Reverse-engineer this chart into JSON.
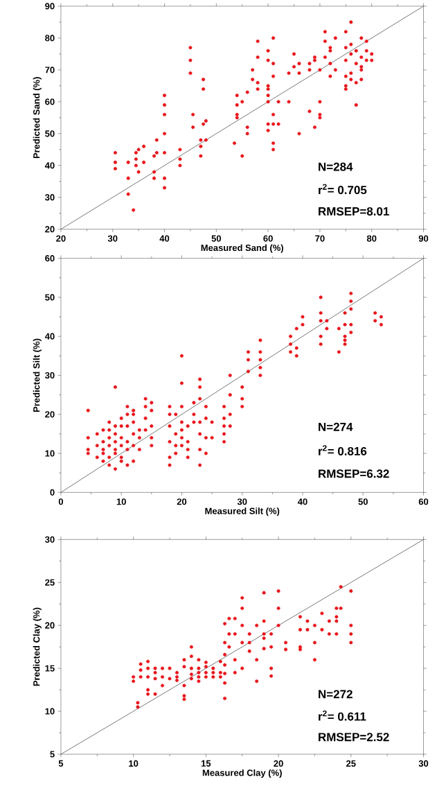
{
  "chart_data": [
    {
      "type": "scatter",
      "xlabel": "Measured Sand (%)",
      "ylabel": "Predicted Sand (%)",
      "xlim": [
        20,
        90
      ],
      "ylim": [
        20,
        90
      ],
      "xticks": [
        20,
        30,
        40,
        50,
        60,
        70,
        80,
        90
      ],
      "yticks": [
        20,
        30,
        40,
        50,
        60,
        70,
        80,
        90
      ],
      "annotations": [
        "N=284",
        "r$^{2}$= 0.705",
        "RMSEP=8.01"
      ],
      "series": [
        {
          "color": "#e8141b",
          "marker": "circle",
          "x": [
            30.5,
            30.5,
            30.5,
            33,
            33,
            33,
            34,
            34.5,
            34.5,
            34.5,
            35,
            35,
            36,
            36,
            38,
            38,
            38,
            38.5,
            38.5,
            40,
            40,
            40,
            40,
            40,
            40,
            40,
            43,
            43,
            43,
            45,
            45,
            45,
            45.5,
            45.5,
            47,
            47,
            47,
            47.5,
            47.5,
            47.5,
            48,
            48,
            53.5,
            54,
            54,
            54,
            54,
            55,
            55,
            56,
            56,
            56,
            57,
            57,
            58,
            58,
            58,
            58,
            60,
            60,
            60,
            60,
            60,
            60,
            60,
            60,
            61,
            61,
            61,
            61,
            61,
            61,
            61,
            62,
            62,
            64,
            64,
            65,
            65,
            66,
            66,
            66,
            68,
            68,
            68,
            69,
            69,
            69,
            70,
            70,
            70,
            70,
            71,
            71,
            71,
            72,
            72,
            72,
            72,
            73,
            73,
            75,
            75,
            75,
            75,
            75,
            75,
            76,
            76,
            76,
            76,
            76,
            77,
            77,
            77,
            77,
            78,
            78,
            78,
            78,
            78,
            79,
            79,
            79,
            80,
            80
          ],
          "values": [
            44,
            41,
            39,
            41,
            36,
            31,
            26,
            44,
            42,
            40,
            38,
            45,
            46,
            41,
            43,
            38,
            36,
            48,
            44,
            62,
            59,
            56,
            50,
            44,
            36,
            33,
            45,
            42,
            40,
            77,
            73,
            69,
            52,
            56,
            43,
            46,
            48,
            67,
            64,
            53,
            48,
            54,
            47,
            62,
            59,
            55,
            56,
            43,
            60,
            63,
            50,
            52,
            70,
            67,
            79,
            74,
            66,
            64,
            76,
            73,
            65,
            64,
            62,
            60,
            53,
            51,
            80,
            72,
            68,
            56,
            53,
            47,
            45,
            60,
            53,
            60,
            69,
            75,
            71,
            72,
            69,
            50,
            70,
            72,
            57,
            74,
            73,
            52,
            70,
            60,
            55,
            56,
            82,
            79,
            74,
            77,
            76,
            72,
            68,
            80,
            70,
            82,
            77,
            73,
            68,
            65,
            64,
            85,
            78,
            75,
            69,
            67,
            76,
            72,
            66,
            59,
            80,
            74,
            70,
            71,
            67,
            79,
            76,
            73,
            75,
            73
          ]
        },
        {
          "type": "line",
          "color": "#555555",
          "x": [
            20,
            90
          ],
          "values": [
            20,
            90
          ]
        }
      ]
    },
    {
      "type": "scatter",
      "xlabel": "Measured Silt (%)",
      "ylabel": "Predicted Silt (%)",
      "xlim": [
        0,
        60
      ],
      "ylim": [
        0,
        60
      ],
      "xticks": [
        0,
        10,
        20,
        30,
        40,
        50,
        60
      ],
      "yticks": [
        0,
        10,
        20,
        30,
        40,
        50,
        60
      ],
      "annotations": [
        "N=274",
        "r$^{2}$= 0.816",
        "RMSEP=6.32"
      ],
      "series": [
        {
          "color": "#e8141b",
          "marker": "circle",
          "x": [
            4.5,
            4.5,
            4.5,
            4.5,
            6,
            6,
            6,
            7,
            7,
            7,
            7,
            7,
            8,
            8,
            8,
            8,
            8,
            8,
            9,
            9,
            9,
            9,
            9,
            9,
            9,
            10,
            10,
            10,
            10,
            10,
            10,
            11,
            11,
            11,
            11,
            11,
            11,
            12,
            12,
            12,
            12,
            12,
            12,
            13,
            13,
            13,
            14,
            14,
            14,
            14,
            15,
            15,
            15,
            15,
            15,
            18,
            18,
            18,
            18,
            18,
            18,
            19,
            19,
            19,
            19,
            20,
            20,
            20,
            20,
            20,
            20,
            20,
            21,
            21,
            21,
            21,
            22,
            22,
            22,
            23,
            23,
            23,
            23,
            23,
            23,
            23,
            24,
            24,
            24,
            24,
            25,
            25,
            27,
            27,
            27,
            27,
            27,
            28,
            28,
            28,
            28,
            30,
            30,
            30,
            31,
            31,
            31,
            33,
            33,
            33,
            33,
            33,
            38,
            38,
            38,
            39,
            39,
            39,
            40,
            40,
            43,
            43,
            43,
            43,
            43,
            44,
            44,
            46,
            46,
            47,
            47,
            47,
            47,
            47,
            48,
            48,
            48,
            48,
            48,
            52,
            52,
            53,
            53
          ],
          "values": [
            21,
            14,
            11,
            10,
            15,
            12,
            9,
            16,
            13,
            11,
            10,
            8,
            18,
            16,
            14,
            12,
            9,
            7,
            27,
            17,
            15,
            13,
            11,
            10,
            6,
            19,
            17,
            14,
            12,
            9,
            8,
            22,
            20,
            17,
            13,
            11,
            7,
            21,
            20,
            18,
            15,
            12,
            8,
            16,
            14,
            11,
            24,
            22,
            19,
            16,
            23,
            21,
            17,
            14,
            12,
            22,
            20,
            17,
            13,
            9,
            7,
            20,
            15,
            12,
            10,
            35,
            28,
            22,
            18,
            16,
            14,
            12,
            17,
            13,
            11,
            9,
            23,
            20,
            18,
            29,
            27,
            24,
            18,
            15,
            11,
            7,
            22,
            19,
            14,
            10,
            18,
            14,
            22,
            19,
            17,
            13,
            15,
            30,
            25,
            20,
            17,
            27,
            22,
            24,
            31,
            36,
            34,
            39,
            34,
            32,
            30,
            36,
            38,
            36,
            40,
            42,
            37,
            35,
            45,
            43,
            50,
            46,
            44,
            40,
            38,
            44,
            42,
            42,
            36,
            46,
            43,
            40,
            39,
            38,
            51,
            49,
            47,
            43,
            41,
            46,
            44,
            45,
            43
          ]
        },
        {
          "type": "line",
          "color": "#555555",
          "x": [
            0,
            60
          ],
          "values": [
            0,
            60
          ]
        }
      ]
    },
    {
      "type": "scatter",
      "xlabel": "Measured Clay (%)",
      "ylabel": "Predicted Clay (%)",
      "xlim": [
        5,
        30
      ],
      "ylim": [
        5,
        30
      ],
      "xticks": [
        5,
        10,
        15,
        20,
        25,
        30
      ],
      "yticks": [
        5,
        10,
        15,
        20,
        25,
        30
      ],
      "annotations": [
        "N=272",
        "r$^{2}$= 0.611",
        "RMSEP=2.52"
      ],
      "series": [
        {
          "color": "#e8141b",
          "marker": "circle",
          "x": [
            10,
            10,
            10.3,
            10.3,
            10.5,
            10.5,
            10.5,
            11,
            11,
            11,
            11,
            11,
            11.5,
            11.5,
            11.5,
            11.5,
            12,
            12,
            12,
            12.5,
            12.5,
            13,
            13,
            13,
            13.5,
            13.5,
            13.5,
            13.5,
            13.5,
            14,
            14,
            14,
            14,
            14,
            14.5,
            14.5,
            14.5,
            14.5,
            14.5,
            15,
            15,
            15,
            15,
            15.5,
            15.5,
            15.5,
            16,
            16,
            16,
            16.3,
            16.3,
            16.3,
            16.3,
            16.3,
            16.3,
            16.3,
            16.6,
            16.6,
            16.6,
            17,
            17,
            17,
            17,
            17.5,
            17.5,
            17.5,
            17.5,
            17.5,
            18,
            18,
            18,
            18.5,
            18.5,
            18.5,
            19,
            19,
            19,
            19,
            19,
            19.5,
            19.5,
            19.5,
            19.5,
            20,
            20,
            20,
            20.5,
            20.5,
            21.5,
            21.5,
            21.5,
            21.5,
            22,
            22,
            22.5,
            22.5,
            22.5,
            23,
            23,
            23.5,
            23.5,
            24,
            24,
            24,
            24,
            24.3,
            24.3,
            25,
            25,
            25,
            25
          ],
          "values": [
            14,
            13.5,
            11,
            10.5,
            15.5,
            14.8,
            14,
            15.8,
            15,
            14,
            12.5,
            12,
            15,
            14.5,
            13.8,
            12,
            15,
            14,
            13,
            15,
            13.8,
            14.5,
            14,
            13.6,
            16,
            15.2,
            13,
            11.8,
            11.4,
            17.5,
            16.4,
            15,
            14.3,
            13.8,
            16,
            15,
            14.5,
            14,
            13.5,
            15.7,
            15.2,
            14.5,
            14,
            15,
            14.5,
            14,
            15.8,
            14.5,
            14,
            20.2,
            18,
            16.6,
            15.4,
            14.4,
            13.3,
            11.5,
            20.8,
            19,
            17.5,
            20.8,
            19,
            16,
            14.5,
            23.2,
            22,
            20,
            18,
            15,
            19,
            18,
            17,
            20,
            16,
            13.5,
            23.8,
            20.5,
            19,
            18.5,
            17.3,
            19,
            17.5,
            15,
            14.1,
            24,
            22,
            20,
            18,
            17.2,
            17.2,
            17.5,
            19.5,
            21,
            20.5,
            19.5,
            16,
            18,
            20,
            21.4,
            19.5,
            19,
            20.5,
            22,
            21,
            20.5,
            19,
            24.5,
            22,
            24,
            20,
            19,
            18
          ]
        },
        {
          "type": "line",
          "color": "#555555",
          "x": [
            5,
            30
          ],
          "values": [
            5,
            30
          ]
        }
      ]
    }
  ]
}
